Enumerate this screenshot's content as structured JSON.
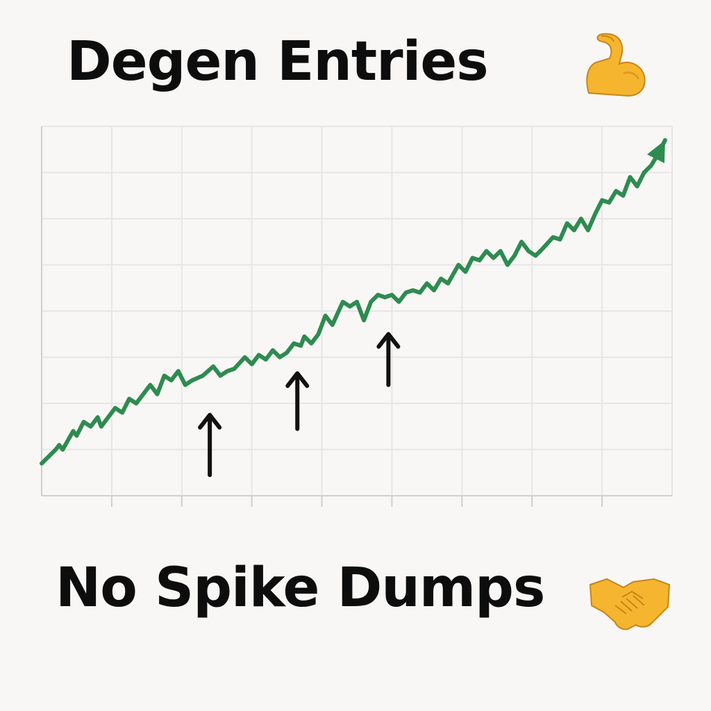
{
  "header": {
    "title": "Degen Entries",
    "title_icon": "flexed-biceps-icon"
  },
  "footer": {
    "subtitle": "No Spike Dumps",
    "subtitle_icon": "handshake-icon"
  },
  "colors": {
    "line": "#2e8b50",
    "arrow": "#111111",
    "grid": "#e6e6e6",
    "axis": "#cfcfcf",
    "background": "#f8f7f5"
  },
  "chart_data": {
    "type": "line",
    "title": "",
    "xlabel": "",
    "ylabel": "",
    "xlim": [
      0,
      9
    ],
    "ylim": [
      0,
      8
    ],
    "grid": true,
    "legend": "none",
    "tick_labels_shown": false,
    "x_ticks": [
      1,
      2,
      3,
      4,
      5,
      6,
      7,
      8
    ],
    "series": [
      {
        "trend_start": [
          0,
          0.7
        ],
        "trend_end": [
          8.9,
          7.7
        ],
        "points": [
          [
            0,
            0.7
          ],
          [
            0.2,
            1.0
          ],
          [
            0.25,
            1.1
          ],
          [
            0.3,
            1.0
          ],
          [
            0.45,
            1.4
          ],
          [
            0.5,
            1.3
          ],
          [
            0.6,
            1.6
          ],
          [
            0.7,
            1.5
          ],
          [
            0.8,
            1.7
          ],
          [
            0.85,
            1.5
          ],
          [
            0.95,
            1.7
          ],
          [
            1.05,
            1.9
          ],
          [
            1.15,
            1.8
          ],
          [
            1.25,
            2.1
          ],
          [
            1.35,
            2.0
          ],
          [
            1.45,
            2.2
          ],
          [
            1.55,
            2.4
          ],
          [
            1.65,
            2.2
          ],
          [
            1.75,
            2.6
          ],
          [
            1.85,
            2.5
          ],
          [
            1.95,
            2.7
          ],
          [
            2.05,
            2.4
          ],
          [
            2.15,
            2.5
          ],
          [
            2.3,
            2.6
          ],
          [
            2.45,
            2.8
          ],
          [
            2.55,
            2.6
          ],
          [
            2.65,
            2.7
          ],
          [
            2.75,
            2.75
          ],
          [
            2.9,
            3.0
          ],
          [
            3.0,
            2.85
          ],
          [
            3.1,
            3.05
          ],
          [
            3.2,
            2.95
          ],
          [
            3.3,
            3.15
          ],
          [
            3.4,
            3.0
          ],
          [
            3.5,
            3.1
          ],
          [
            3.6,
            3.3
          ],
          [
            3.7,
            3.25
          ],
          [
            3.75,
            3.45
          ],
          [
            3.85,
            3.3
          ],
          [
            3.95,
            3.5
          ],
          [
            4.05,
            3.9
          ],
          [
            4.15,
            3.7
          ],
          [
            4.3,
            4.2
          ],
          [
            4.4,
            4.1
          ],
          [
            4.5,
            4.2
          ],
          [
            4.6,
            3.8
          ],
          [
            4.7,
            4.2
          ],
          [
            4.8,
            4.35
          ],
          [
            4.9,
            4.3
          ],
          [
            5.0,
            4.35
          ],
          [
            5.1,
            4.2
          ],
          [
            5.2,
            4.4
          ],
          [
            5.3,
            4.45
          ],
          [
            5.4,
            4.4
          ],
          [
            5.5,
            4.6
          ],
          [
            5.6,
            4.45
          ],
          [
            5.7,
            4.7
          ],
          [
            5.8,
            4.6
          ],
          [
            5.95,
            5.0
          ],
          [
            6.05,
            4.85
          ],
          [
            6.15,
            5.15
          ],
          [
            6.25,
            5.1
          ],
          [
            6.35,
            5.3
          ],
          [
            6.45,
            5.15
          ],
          [
            6.55,
            5.3
          ],
          [
            6.65,
            5.0
          ],
          [
            6.75,
            5.2
          ],
          [
            6.85,
            5.5
          ],
          [
            6.95,
            5.3
          ],
          [
            7.05,
            5.2
          ],
          [
            7.15,
            5.35
          ],
          [
            7.3,
            5.6
          ],
          [
            7.4,
            5.55
          ],
          [
            7.5,
            5.9
          ],
          [
            7.6,
            5.75
          ],
          [
            7.7,
            6.0
          ],
          [
            7.8,
            5.75
          ],
          [
            7.9,
            6.1
          ],
          [
            8.0,
            6.4
          ],
          [
            8.1,
            6.35
          ],
          [
            8.2,
            6.6
          ],
          [
            8.3,
            6.5
          ],
          [
            8.4,
            6.9
          ],
          [
            8.5,
            6.7
          ],
          [
            8.6,
            7.0
          ],
          [
            8.7,
            7.15
          ],
          [
            8.8,
            7.4
          ],
          [
            8.9,
            7.7
          ]
        ]
      }
    ],
    "annotations": [
      {
        "type": "up-arrow",
        "x": 2.4,
        "from_y": 0.45,
        "to_y": 1.75
      },
      {
        "type": "up-arrow",
        "x": 3.65,
        "from_y": 1.45,
        "to_y": 2.65
      },
      {
        "type": "up-arrow",
        "x": 4.95,
        "from_y": 2.4,
        "to_y": 3.5
      }
    ]
  }
}
